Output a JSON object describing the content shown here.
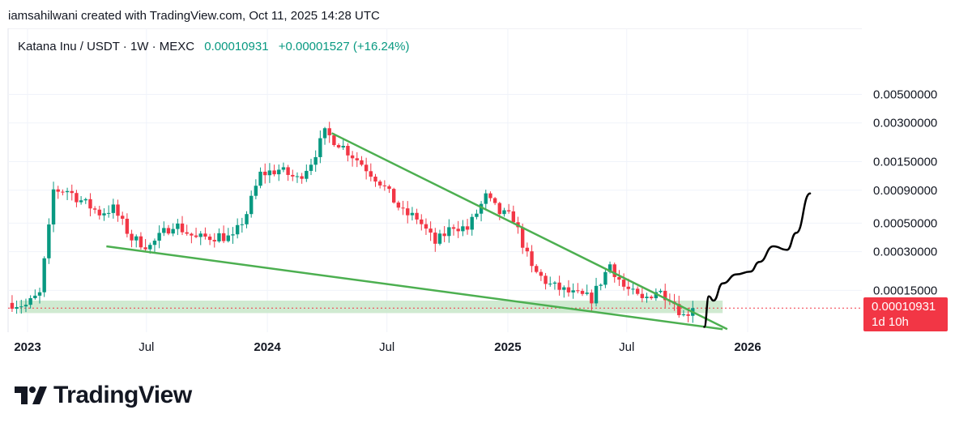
{
  "header": {
    "attribution": "iamsahilwani created with TradingView.com, Oct 11, 2025 14:28 UTC"
  },
  "legend": {
    "symbol": "Katana Inu / USDT · 1W · MEXC",
    "price": "0.00010931",
    "change": "+0.00001527 (+16.24%)"
  },
  "price_badge": {
    "price": "0.00010931",
    "timer": "1d 10h"
  },
  "brand": {
    "name": "TradingView"
  },
  "colors": {
    "up": "#089981",
    "down": "#f23645",
    "trendline": "#4caf50",
    "drawing": "#000000",
    "zone": "#c8e6c9"
  },
  "chart_data": {
    "type": "candlestick",
    "scale": "log",
    "interval": "1W",
    "ylim": [
      7e-05,
      0.0052
    ],
    "x_ticks": [
      "2023",
      "Jul",
      "2024",
      "Jul",
      "2025",
      "Jul",
      "2026"
    ],
    "x_tick_dates": [
      "2023-01-01",
      "2023-07-01",
      "2024-01-01",
      "2024-07-01",
      "2025-01-01",
      "2025-07-01",
      "2026-01-01"
    ],
    "y_ticks": [
      "0.00500000",
      "0.00300000",
      "0.00150000",
      "0.00090000",
      "0.00050000",
      "0.00030000",
      "0.00015000"
    ],
    "y_tick_values": [
      0.005,
      0.003,
      0.0015,
      0.0009,
      0.0005,
      0.0003,
      0.00015
    ],
    "last_price": 0.00010931,
    "close_path": [
      [
        "2022-12-05",
        0.00012
      ],
      [
        "2022-12-26",
        0.000115
      ],
      [
        "2023-01-16",
        0.00014
      ],
      [
        "2023-01-30",
        0.00045
      ],
      [
        "2023-02-06",
        0.0009
      ],
      [
        "2023-02-27",
        0.0009
      ],
      [
        "2023-03-20",
        0.00075
      ],
      [
        "2023-04-17",
        0.0006
      ],
      [
        "2023-05-08",
        0.00065
      ],
      [
        "2023-06-05",
        0.00038
      ],
      [
        "2023-07-03",
        0.00033
      ],
      [
        "2023-08-07",
        0.0005
      ],
      [
        "2023-09-11",
        0.00038
      ],
      [
        "2023-10-16",
        0.0004
      ],
      [
        "2023-11-06",
        0.00038
      ],
      [
        "2023-11-27",
        0.0006
      ],
      [
        "2023-12-18",
        0.0012
      ],
      [
        "2024-01-15",
        0.0013
      ],
      [
        "2024-02-12",
        0.0011
      ],
      [
        "2024-03-04",
        0.0015
      ],
      [
        "2024-03-25",
        0.0025
      ],
      [
        "2024-04-15",
        0.0021
      ],
      [
        "2024-05-20",
        0.00145
      ],
      [
        "2024-06-17",
        0.00105
      ],
      [
        "2024-07-22",
        0.0006
      ],
      [
        "2024-08-12",
        0.00055
      ],
      [
        "2024-09-09",
        0.00035
      ],
      [
        "2024-10-07",
        0.00048
      ],
      [
        "2024-10-28",
        0.00045
      ],
      [
        "2024-11-25",
        0.0008
      ],
      [
        "2024-12-16",
        0.0006
      ],
      [
        "2025-01-06",
        0.00055
      ],
      [
        "2025-02-03",
        0.00022
      ],
      [
        "2025-03-03",
        0.000165
      ],
      [
        "2025-04-07",
        0.00014
      ],
      [
        "2025-05-05",
        0.00013
      ],
      [
        "2025-06-02",
        0.00024
      ],
      [
        "2025-06-23",
        0.00016
      ],
      [
        "2025-07-21",
        0.000125
      ],
      [
        "2025-08-11",
        0.00015
      ],
      [
        "2025-09-01",
        0.000135
      ],
      [
        "2025-09-22",
        9.5e-05
      ],
      [
        "2025-10-06",
        0.00010931
      ]
    ],
    "trendlines": [
      {
        "name": "upper",
        "from": [
          "2024-04-08",
          0.0025
        ],
        "to": [
          "2025-12-01",
          7.5e-05
        ]
      },
      {
        "name": "lower",
        "from": [
          "2023-05-01",
          0.00033
        ],
        "to": [
          "2025-11-24",
          7.5e-05
        ]
      }
    ],
    "support_zone": {
      "from": "2022-12-19",
      "to": "2025-11-24",
      "low": 0.0001,
      "high": 0.000125
    },
    "projection": [
      [
        "2025-10-27",
        7.8e-05
      ],
      [
        "2025-11-03",
        0.000135
      ],
      [
        "2025-11-10",
        0.000125
      ],
      [
        "2025-11-24",
        0.00017
      ],
      [
        "2025-12-15",
        0.0002
      ],
      [
        "2026-01-05",
        0.00021
      ],
      [
        "2026-01-19",
        0.00025
      ],
      [
        "2026-02-09",
        0.00033
      ],
      [
        "2026-03-02",
        0.00031
      ],
      [
        "2026-03-16",
        0.00042
      ],
      [
        "2026-04-06",
        0.00085
      ]
    ]
  }
}
